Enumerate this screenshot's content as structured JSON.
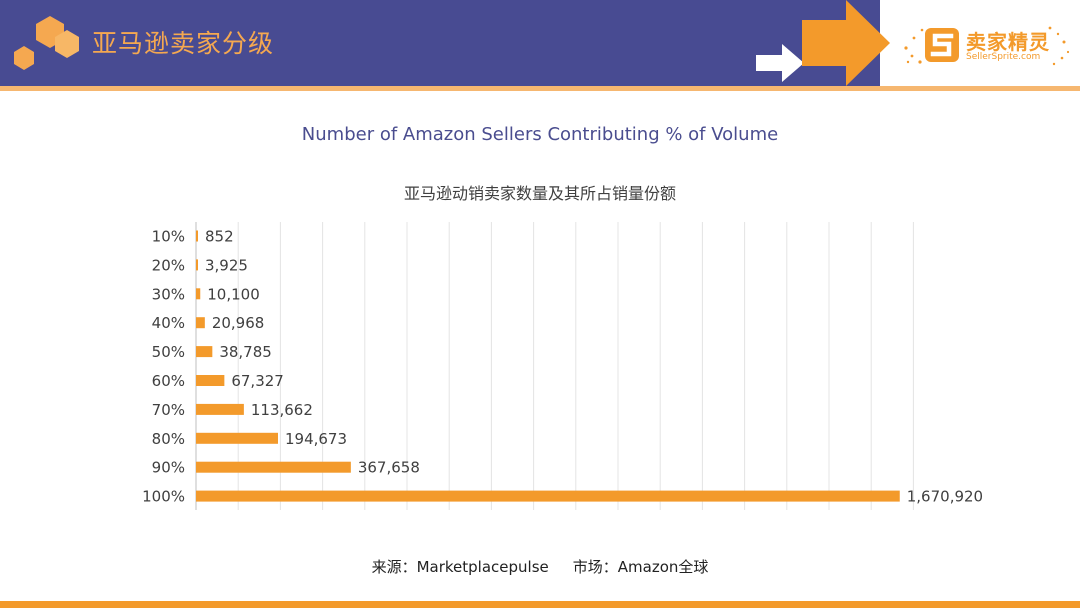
{
  "header": {
    "title": "亚马逊卖家分级",
    "logo_cn": "卖家精灵",
    "logo_en": "SellerSprite.com",
    "colors": {
      "band": "#484b92",
      "accent": "#f39a2b",
      "title": "#f5a850",
      "underline": "#f6b770"
    },
    "icons": [
      "hexagon-cluster-icon",
      "white-arrow-icon",
      "orange-arrow-icon",
      "sellersprite-logo-icon"
    ]
  },
  "chart_data": {
    "type": "bar",
    "orientation": "horizontal",
    "title": "Number of Amazon Sellers Contributing % of Volume",
    "subtitle": "亚马逊动销卖家数量及其所占销量份额",
    "categories": [
      "10%",
      "20%",
      "30%",
      "40%",
      "50%",
      "60%",
      "70%",
      "80%",
      "90%",
      "100%"
    ],
    "values": [
      852,
      3925,
      10100,
      20968,
      38785,
      67327,
      113662,
      194673,
      367658,
      1670920
    ],
    "data_labels": [
      "852",
      "3,925",
      "10,100",
      "20,968",
      "38,785",
      "67,327",
      "113,662",
      "194,673",
      "367,658",
      "1,670,920"
    ],
    "xlim": [
      0,
      1700000
    ],
    "grid": true,
    "bar_color": "#f39a2b"
  },
  "footer": {
    "source": "来源：Marketplacepulse",
    "market": "市场：Amazon全球"
  }
}
